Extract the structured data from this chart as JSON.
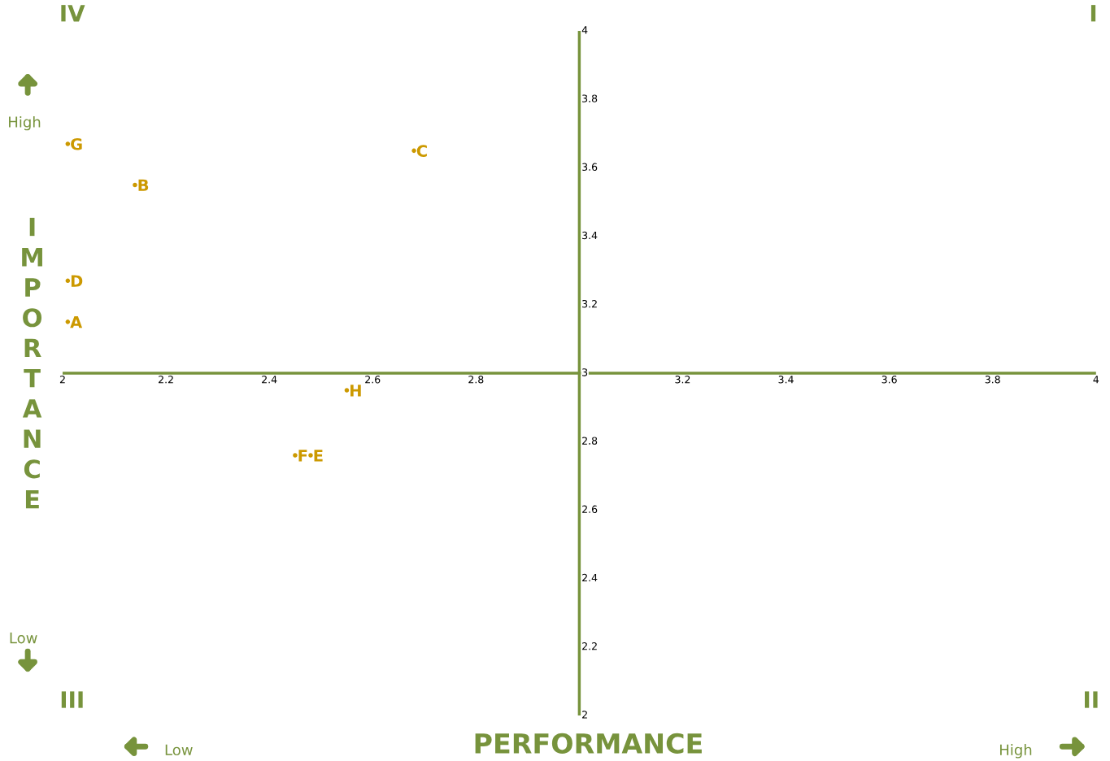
{
  "chart_data": {
    "type": "scatter",
    "xlabel": "PERFORMANCE",
    "ylabel": "IMPORTANCE",
    "xlim": [
      2,
      4
    ],
    "ylim": [
      2,
      4
    ],
    "xticks": [
      2,
      2.2,
      2.4,
      2.6,
      2.8,
      3.2,
      3.4,
      3.6,
      3.8,
      4
    ],
    "yticks": [
      2,
      2.2,
      2.4,
      2.6,
      2.8,
      3,
      3.2,
      3.4,
      3.6,
      3.8,
      4
    ],
    "grid": false,
    "marker": "circle",
    "series": [
      {
        "color": "#cc9900",
        "x": [
          2.01,
          2.14,
          2.68,
          2.01,
          2.01,
          2.45,
          2.48,
          2.55
        ],
        "values": [
          3.67,
          3.55,
          3.65,
          3.27,
          3.15,
          2.76,
          2.76,
          2.95
        ],
        "value_labels": [
          "G",
          "B",
          "C",
          "D",
          "A",
          "F",
          "E",
          "H"
        ]
      }
    ],
    "annotations": [
      "IV",
      "I",
      "III",
      "II",
      "High",
      "Low",
      "Low",
      "High"
    ]
  }
}
